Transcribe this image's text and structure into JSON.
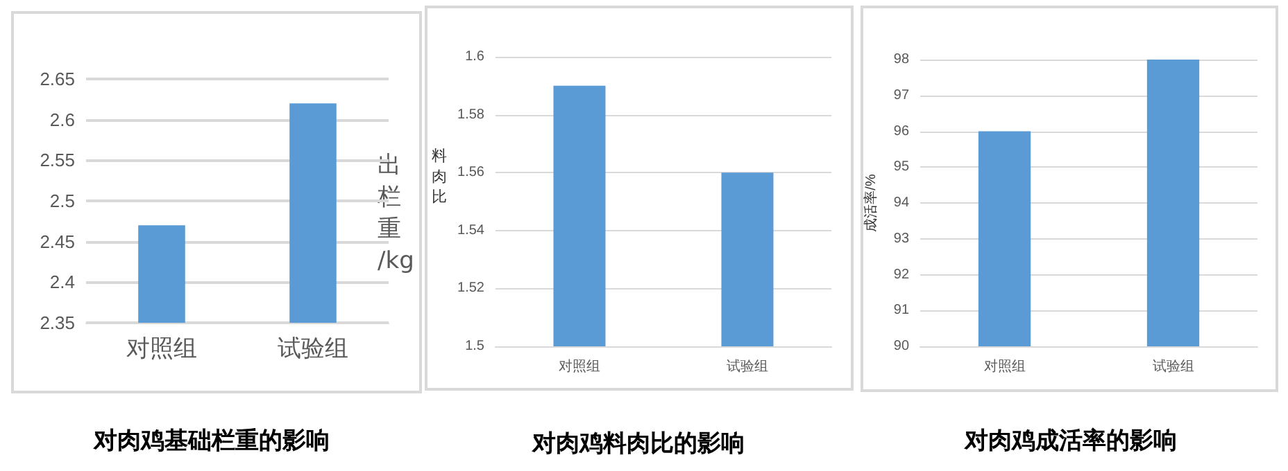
{
  "chart_data": [
    {
      "type": "bar",
      "title": "对肉鸡基础栏重的影响",
      "ylabel": "出栏重/kg",
      "categories": [
        "对照组",
        "试验组"
      ],
      "values": [
        2.47,
        2.62
      ],
      "color": "#5b9bd5",
      "ylim": [
        2.35,
        2.65
      ],
      "yticks": [
        2.35,
        2.4,
        2.45,
        2.5,
        2.55,
        2.6,
        2.65
      ],
      "grid": "y"
    },
    {
      "type": "bar",
      "title": "对肉鸡料肉比的影响",
      "ylabel": "料肉比",
      "categories": [
        "对照组",
        "试验组"
      ],
      "values": [
        1.59,
        1.56
      ],
      "color": "#5b9bd5",
      "ylim": [
        1.5,
        1.6
      ],
      "yticks": [
        1.5,
        1.52,
        1.54,
        1.56,
        1.58,
        1.6
      ],
      "grid": "y"
    },
    {
      "type": "bar",
      "title": "对肉鸡成活率的影响",
      "ylabel": "成活率/%",
      "categories": [
        "对照组",
        "试验组"
      ],
      "values": [
        96,
        98
      ],
      "color": "#5b9bd5",
      "ylim": [
        90,
        98
      ],
      "yticks": [
        90,
        91,
        92,
        93,
        94,
        95,
        96,
        97,
        98
      ],
      "grid": "y"
    }
  ]
}
